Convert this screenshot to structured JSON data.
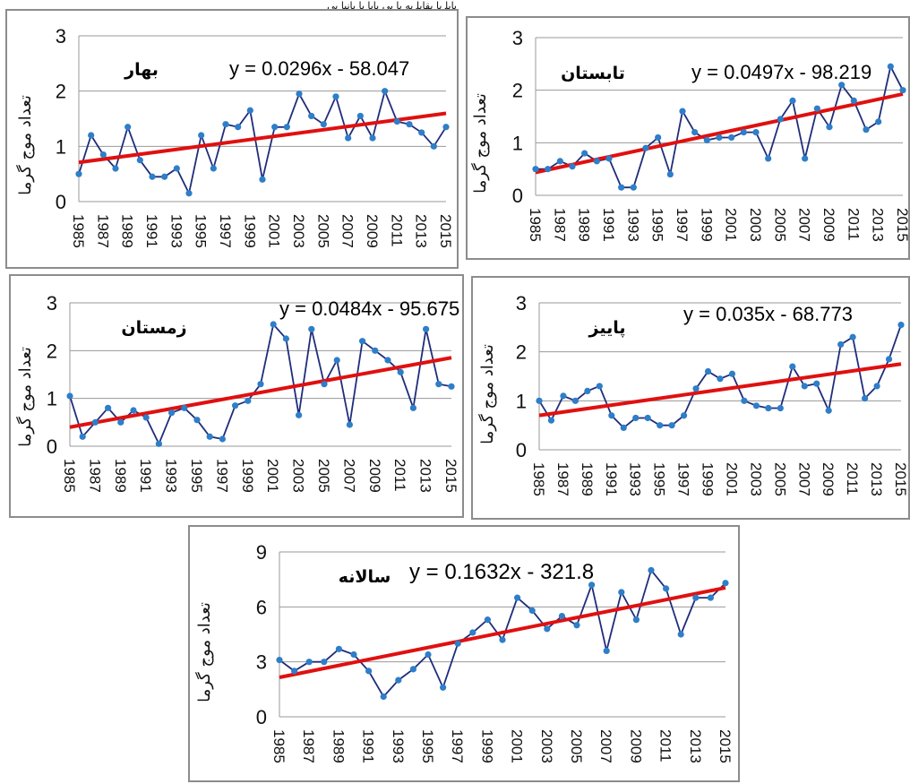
{
  "header_fragment": "ﺑﺎﺑﻠ ﻳﺎ ﺑﻘﺎﺑﻠ ﺑﻪ ﻳﺎ ﺑﻲ ﻳﺎﻳﺎ ﺑﺎ ﺑﺎﻧﻴﺎ ﺑﻲ",
  "colors": {
    "series": "#1f2d7a",
    "marker": "#2e7ec8",
    "trend": "#e01010",
    "grid": "#9a9a9a",
    "frame": "#8c8c8c"
  },
  "chart_data": [
    {
      "id": "spring",
      "type": "line",
      "title": "بهار",
      "equation": "y = 0.0296x - 58.047",
      "ylabel": "تعداد موج گرما",
      "ylim": [
        0,
        3
      ],
      "yticks": [
        "0",
        "1",
        "2",
        "3"
      ],
      "xticks": [
        "1985",
        "1987",
        "1989",
        "1991",
        "1993",
        "1995",
        "1997",
        "1999",
        "2001",
        "2003",
        "2005",
        "2007",
        "2009",
        "2011",
        "2013",
        "2015"
      ],
      "trendline": {
        "slope": 0.0296,
        "intercept": -58.047
      },
      "x": [
        1985,
        1986,
        1987,
        1988,
        1989,
        1990,
        1991,
        1992,
        1993,
        1994,
        1995,
        1996,
        1997,
        1998,
        1999,
        2000,
        2001,
        2002,
        2003,
        2004,
        2005,
        2006,
        2007,
        2008,
        2009,
        2010,
        2011,
        2012,
        2013,
        2014,
        2015
      ],
      "values": [
        0.5,
        1.2,
        0.85,
        0.6,
        1.35,
        0.75,
        0.45,
        0.45,
        0.6,
        0.15,
        1.2,
        0.6,
        1.4,
        1.35,
        1.65,
        0.4,
        1.35,
        1.35,
        1.95,
        1.55,
        1.4,
        1.9,
        1.15,
        1.55,
        1.15,
        2.0,
        1.45,
        1.4,
        1.25,
        1.0,
        1.35
      ]
    },
    {
      "id": "summer",
      "type": "line",
      "title": "تابستان",
      "equation": "y = 0.0497x - 98.219",
      "ylabel": "تعداد موج گرما",
      "ylim": [
        0,
        3
      ],
      "yticks": [
        "0",
        "1",
        "2",
        "3"
      ],
      "xticks": [
        "1985",
        "1987",
        "1989",
        "1991",
        "1993",
        "1995",
        "1997",
        "1999",
        "2001",
        "2003",
        "2005",
        "2007",
        "2009",
        "2011",
        "2013",
        "2015"
      ],
      "trendline": {
        "slope": 0.0497,
        "intercept": -98.219
      },
      "x": [
        1985,
        1986,
        1987,
        1988,
        1989,
        1990,
        1991,
        1992,
        1993,
        1994,
        1995,
        1996,
        1997,
        1998,
        1999,
        2000,
        2001,
        2002,
        2003,
        2004,
        2005,
        2006,
        2007,
        2008,
        2009,
        2010,
        2011,
        2012,
        2013,
        2014,
        2015
      ],
      "values": [
        0.5,
        0.5,
        0.65,
        0.55,
        0.8,
        0.65,
        0.7,
        0.15,
        0.15,
        0.9,
        1.1,
        0.4,
        1.6,
        1.2,
        1.05,
        1.1,
        1.1,
        1.2,
        1.2,
        0.7,
        1.45,
        1.8,
        0.7,
        1.65,
        1.3,
        2.1,
        1.8,
        1.25,
        1.4,
        2.45,
        2.0
      ]
    },
    {
      "id": "winter",
      "type": "line",
      "title": "زمستان",
      "equation": "y = 0.0484x - 95.675",
      "ylabel": "تعداد موج گرما",
      "ylim": [
        0,
        3
      ],
      "yticks": [
        "0",
        "1",
        "2",
        "3"
      ],
      "xticks": [
        "1985",
        "1987",
        "1989",
        "1991",
        "1993",
        "1995",
        "1997",
        "1999",
        "2001",
        "2003",
        "2005",
        "2007",
        "2009",
        "2011",
        "2013",
        "2015"
      ],
      "trendline": {
        "slope": 0.0484,
        "intercept": -95.675
      },
      "x": [
        1985,
        1986,
        1987,
        1988,
        1989,
        1990,
        1991,
        1992,
        1993,
        1994,
        1995,
        1996,
        1997,
        1998,
        1999,
        2000,
        2001,
        2002,
        2003,
        2004,
        2005,
        2006,
        2007,
        2008,
        2009,
        2010,
        2011,
        2012,
        2013,
        2014,
        2015
      ],
      "values": [
        1.05,
        0.2,
        0.5,
        0.8,
        0.5,
        0.75,
        0.6,
        0.05,
        0.7,
        0.8,
        0.55,
        0.2,
        0.15,
        0.85,
        0.95,
        1.3,
        2.55,
        2.25,
        0.65,
        2.45,
        1.3,
        1.8,
        0.45,
        2.2,
        2.0,
        1.8,
        1.55,
        0.8,
        2.45,
        1.3,
        1.25
      ]
    },
    {
      "id": "autumn",
      "type": "line",
      "title": "پاییز",
      "equation": "y = 0.035x - 68.773",
      "ylabel": "تعداد موج گرما",
      "ylim": [
        0,
        3
      ],
      "yticks": [
        "0",
        "1",
        "2",
        "3"
      ],
      "xticks": [
        "1985",
        "1987",
        "1989",
        "1991",
        "1993",
        "1995",
        "1997",
        "1999",
        "2001",
        "2003",
        "2005",
        "2007",
        "2009",
        "2011",
        "2013",
        "2015"
      ],
      "trendline": {
        "slope": 0.035,
        "intercept": -68.773
      },
      "x": [
        1985,
        1986,
        1987,
        1988,
        1989,
        1990,
        1991,
        1992,
        1993,
        1994,
        1995,
        1996,
        1997,
        1998,
        1999,
        2000,
        2001,
        2002,
        2003,
        2004,
        2005,
        2006,
        2007,
        2008,
        2009,
        2010,
        2011,
        2012,
        2013,
        2014,
        2015
      ],
      "values": [
        1.0,
        0.6,
        1.1,
        1.0,
        1.2,
        1.3,
        0.7,
        0.45,
        0.65,
        0.65,
        0.5,
        0.5,
        0.7,
        1.25,
        1.6,
        1.45,
        1.55,
        1.0,
        0.9,
        0.85,
        0.85,
        1.7,
        1.3,
        1.35,
        0.8,
        2.15,
        2.3,
        1.05,
        1.3,
        1.85,
        2.55
      ]
    },
    {
      "id": "annual",
      "type": "line",
      "title": "سالانه",
      "equation": "y = 0.1632x - 321.8",
      "ylabel": "تعداد موج گرما",
      "ylim": [
        0,
        9
      ],
      "yticks": [
        "0",
        "3",
        "6",
        "9"
      ],
      "xticks": [
        "1985",
        "1987",
        "1989",
        "1991",
        "1993",
        "1995",
        "1997",
        "1999",
        "2001",
        "2003",
        "2005",
        "2007",
        "2009",
        "2011",
        "2013",
        "2015"
      ],
      "trendline": {
        "slope": 0.1632,
        "intercept": -321.8
      },
      "x": [
        1985,
        1986,
        1987,
        1988,
        1989,
        1990,
        1991,
        1992,
        1993,
        1994,
        1995,
        1996,
        1997,
        1998,
        1999,
        2000,
        2001,
        2002,
        2003,
        2004,
        2005,
        2006,
        2007,
        2008,
        2009,
        2010,
        2011,
        2012,
        2013,
        2014,
        2015
      ],
      "values": [
        3.1,
        2.5,
        3.0,
        3.0,
        3.7,
        3.4,
        2.5,
        1.1,
        2.0,
        2.6,
        3.4,
        1.6,
        4.0,
        4.6,
        5.3,
        4.2,
        6.5,
        5.8,
        4.8,
        5.5,
        5.0,
        7.2,
        3.6,
        6.8,
        5.3,
        8.0,
        7.0,
        4.5,
        6.5,
        6.5,
        7.3
      ]
    }
  ]
}
